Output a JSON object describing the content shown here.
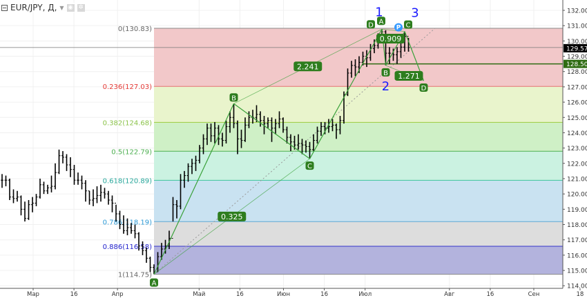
{
  "legend": {
    "symbol": "EUR/JPY, Д,",
    "dropdown_icon": "caret-down-icon",
    "eye_icon": "eye-icon",
    "settings_icon": "gear-icon"
  },
  "colors": {
    "bar": "#000000",
    "pattern": "#3aa13a",
    "pattern_label_bg": "#2e7d1e",
    "wave_label": "#1a1aff",
    "point_p": "#3399ff",
    "price_line": "#000000",
    "hline": "#2e6b12"
  },
  "chart_data": {
    "type": "ohlc-bar",
    "symbol": "EUR/JPY",
    "ylim": [
      114,
      132
    ],
    "y_ticks": [
      114,
      115,
      116,
      117,
      118,
      119,
      120,
      121,
      122,
      123,
      124,
      125,
      126,
      127,
      128,
      129,
      130,
      131,
      132
    ],
    "y_tick_labels": [
      "114.00",
      "115.00",
      "116.00",
      "117.00",
      "118.00",
      "119.00",
      "120.00",
      "121.00",
      "122.00",
      "123.00",
      "124.00",
      "125.00",
      "126.00",
      "127.00",
      "128.00",
      "129.00",
      "130.00",
      "131.00",
      "132.00"
    ],
    "x_ticks": [
      {
        "date": "2017-03-01",
        "label": "Мар"
      },
      {
        "date": "2017-03-16",
        "label": "16"
      },
      {
        "date": "2017-04-01",
        "label": "Апр"
      },
      {
        "date": "2017-05-01",
        "label": "Май"
      },
      {
        "date": "2017-05-16",
        "label": "16"
      },
      {
        "date": "2017-06-01",
        "label": "Июн"
      },
      {
        "date": "2017-06-16",
        "label": "16"
      },
      {
        "date": "2017-07-01",
        "label": "Июл"
      },
      {
        "date": "2017-08-01",
        "label": "Авг"
      },
      {
        "date": "2017-08-16",
        "label": "16"
      },
      {
        "date": "2017-09-01",
        "label": "Сен"
      },
      {
        "date": "2017-09-18",
        "label": "18"
      }
    ],
    "grid": true,
    "bar_fields": [
      "date",
      "high",
      "low",
      "close"
    ],
    "bars": [
      [
        "2017-02-17",
        121.3,
        120.4,
        120.9
      ],
      [
        "2017-02-20",
        121.2,
        120.5,
        120.9
      ],
      [
        "2017-02-21",
        121.0,
        119.6,
        119.8
      ],
      [
        "2017-02-22",
        120.3,
        119.4,
        119.7
      ],
      [
        "2017-02-23",
        120.2,
        119.5,
        119.8
      ],
      [
        "2017-02-24",
        119.9,
        118.6,
        119.0
      ],
      [
        "2017-02-27",
        119.5,
        118.2,
        118.4
      ],
      [
        "2017-02-28",
        119.6,
        118.3,
        119.3
      ],
      [
        "2017-03-01",
        119.8,
        118.8,
        119.4
      ],
      [
        "2017-03-02",
        120.0,
        119.2,
        119.8
      ],
      [
        "2017-03-03",
        121.0,
        119.7,
        120.6
      ],
      [
        "2017-03-06",
        120.8,
        120.0,
        120.2
      ],
      [
        "2017-03-07",
        120.6,
        120.0,
        120.4
      ],
      [
        "2017-03-08",
        121.2,
        120.1,
        120.5
      ],
      [
        "2017-03-09",
        122.0,
        120.3,
        121.4
      ],
      [
        "2017-03-10",
        122.9,
        121.3,
        122.5
      ],
      [
        "2017-03-13",
        122.8,
        122.0,
        122.4
      ],
      [
        "2017-03-14",
        122.6,
        121.5,
        121.9
      ],
      [
        "2017-03-15",
        122.4,
        121.1,
        121.6
      ],
      [
        "2017-03-16",
        121.9,
        120.6,
        120.9
      ],
      [
        "2017-03-17",
        121.4,
        120.6,
        120.9
      ],
      [
        "2017-03-20",
        121.2,
        120.3,
        120.7
      ],
      [
        "2017-03-21",
        120.9,
        119.5,
        120.2
      ],
      [
        "2017-03-22",
        120.2,
        119.3,
        119.6
      ],
      [
        "2017-03-23",
        120.3,
        119.2,
        119.7
      ],
      [
        "2017-03-24",
        120.5,
        119.4,
        119.9
      ],
      [
        "2017-03-27",
        120.6,
        119.5,
        120.1
      ],
      [
        "2017-03-28",
        120.4,
        119.7,
        120.0
      ],
      [
        "2017-03-29",
        120.2,
        119.3,
        119.6
      ],
      [
        "2017-03-30",
        119.9,
        118.8,
        119.4
      ],
      [
        "2017-03-31",
        119.3,
        118.2,
        118.7
      ],
      [
        "2017-04-03",
        118.9,
        117.7,
        118.0
      ],
      [
        "2017-04-04",
        118.6,
        117.4,
        117.6
      ],
      [
        "2017-04-05",
        118.4,
        117.3,
        117.8
      ],
      [
        "2017-04-06",
        118.1,
        117.4,
        117.6
      ],
      [
        "2017-04-07",
        118.0,
        117.1,
        117.4
      ],
      [
        "2017-04-10",
        117.5,
        116.3,
        116.6
      ],
      [
        "2017-04-11",
        116.9,
        116.0,
        116.3
      ],
      [
        "2017-04-12",
        116.5,
        115.5,
        115.8
      ],
      [
        "2017-04-13",
        115.9,
        114.9,
        115.2
      ],
      [
        "2017-04-14",
        115.4,
        114.75,
        114.9
      ],
      [
        "2017-04-17",
        116.2,
        114.9,
        115.9
      ],
      [
        "2017-04-18",
        116.8,
        115.7,
        116.4
      ],
      [
        "2017-04-19",
        117.0,
        116.1,
        116.6
      ],
      [
        "2017-04-20",
        117.6,
        116.4,
        117.1
      ],
      [
        "2017-04-21",
        119.8,
        118.2,
        119.3
      ],
      [
        "2017-04-24",
        119.6,
        118.4,
        119.2
      ],
      [
        "2017-04-25",
        121.3,
        119.0,
        120.9
      ],
      [
        "2017-04-26",
        121.5,
        120.4,
        121.2
      ],
      [
        "2017-04-27",
        122.0,
        120.8,
        121.8
      ],
      [
        "2017-04-28",
        122.3,
        121.3,
        122.0
      ],
      [
        "2017-05-01",
        122.5,
        121.5,
        122.2
      ],
      [
        "2017-05-02",
        123.2,
        122.0,
        123.0
      ],
      [
        "2017-05-03",
        123.9,
        122.6,
        123.6
      ],
      [
        "2017-05-04",
        124.6,
        123.2,
        124.3
      ],
      [
        "2017-05-05",
        124.6,
        123.4,
        123.8
      ],
      [
        "2017-05-08",
        124.7,
        123.3,
        124.3
      ],
      [
        "2017-05-09",
        124.5,
        123.2,
        123.6
      ],
      [
        "2017-05-10",
        124.0,
        123.1,
        123.5
      ],
      [
        "2017-05-11",
        124.8,
        123.3,
        124.4
      ],
      [
        "2017-05-12",
        125.4,
        124.0,
        125.0
      ],
      [
        "2017-05-15",
        125.9,
        124.3,
        124.6
      ],
      [
        "2017-05-16",
        124.8,
        122.6,
        123.6
      ],
      [
        "2017-05-17",
        124.2,
        123.0,
        123.5
      ],
      [
        "2017-05-18",
        125.0,
        123.4,
        124.5
      ],
      [
        "2017-05-19",
        125.4,
        124.3,
        125.0
      ],
      [
        "2017-05-22",
        125.5,
        124.6,
        125.0
      ],
      [
        "2017-05-23",
        125.8,
        124.7,
        125.2
      ],
      [
        "2017-05-24",
        125.4,
        124.4,
        124.8
      ],
      [
        "2017-05-25",
        125.1,
        123.9,
        124.6
      ],
      [
        "2017-05-26",
        125.0,
        124.3,
        124.8
      ],
      [
        "2017-05-29",
        125.0,
        123.4,
        124.3
      ],
      [
        "2017-05-30",
        124.9,
        123.9,
        124.6
      ],
      [
        "2017-05-31",
        125.4,
        124.3,
        124.9
      ],
      [
        "2017-06-01",
        125.0,
        124.0,
        124.2
      ],
      [
        "2017-06-02",
        124.4,
        123.3,
        123.7
      ],
      [
        "2017-06-05",
        123.9,
        122.8,
        123.4
      ],
      [
        "2017-06-06",
        123.8,
        122.9,
        123.2
      ],
      [
        "2017-06-07",
        123.9,
        122.9,
        123.3
      ],
      [
        "2017-06-08",
        123.6,
        122.6,
        123.2
      ],
      [
        "2017-06-09",
        123.5,
        122.7,
        123.1
      ],
      [
        "2017-06-12",
        123.4,
        122.3,
        122.9
      ],
      [
        "2017-06-13",
        123.9,
        122.8,
        123.5
      ],
      [
        "2017-06-14",
        124.4,
        123.3,
        124.1
      ],
      [
        "2017-06-15",
        124.7,
        123.8,
        124.4
      ],
      [
        "2017-06-16",
        124.7,
        123.9,
        124.3
      ],
      [
        "2017-06-19",
        124.9,
        124.0,
        124.4
      ],
      [
        "2017-06-20",
        124.9,
        124.1,
        124.5
      ],
      [
        "2017-06-21",
        124.6,
        123.6,
        124.2
      ],
      [
        "2017-06-22",
        125.1,
        123.9,
        124.8
      ],
      [
        "2017-06-23",
        126.7,
        124.6,
        126.5
      ],
      [
        "2017-06-26",
        128.2,
        126.4,
        127.9
      ],
      [
        "2017-06-27",
        128.7,
        127.6,
        128.4
      ],
      [
        "2017-06-28",
        128.8,
        127.7,
        128.3
      ],
      [
        "2017-06-29",
        129.0,
        127.9,
        128.6
      ],
      [
        "2017-06-30",
        129.3,
        128.4,
        129.0
      ],
      [
        "2017-07-03",
        129.4,
        128.3,
        128.9
      ],
      [
        "2017-07-04",
        129.8,
        128.7,
        129.5
      ],
      [
        "2017-07-05",
        130.1,
        129.2,
        129.7
      ],
      [
        "2017-07-06",
        130.5,
        129.5,
        130.2
      ],
      [
        "2017-07-07",
        130.77,
        130.0,
        130.6
      ],
      [
        "2017-07-10",
        130.7,
        128.4,
        129.2
      ],
      [
        "2017-07-11",
        129.6,
        128.5,
        129.2
      ],
      [
        "2017-07-12",
        129.5,
        128.7,
        129.1
      ],
      [
        "2017-07-13",
        129.6,
        128.5,
        129.3
      ],
      [
        "2017-07-14",
        130.0,
        128.9,
        129.6
      ],
      [
        "2017-07-17",
        130.62,
        129.3,
        130.3
      ],
      [
        "2017-07-18",
        130.2,
        129.3,
        129.57
      ]
    ],
    "last_price": {
      "value": 129.57,
      "label": "129.57"
    },
    "horizontal_line": {
      "value": 128.5,
      "label": "128.50",
      "from_date": "2017-06-30"
    },
    "fibonacci": {
      "start": {
        "date": "2017-04-14",
        "price": 114.75
      },
      "end": {
        "date": "2017-07-27",
        "price": 130.83
      },
      "levels": [
        {
          "ratio": 0,
          "price": 130.83,
          "label": "0(130.83)",
          "line": "#888888",
          "fill": "#f2c8c9",
          "text": "#666666"
        },
        {
          "ratio": 0.236,
          "price": 127.03,
          "label": "0.236(127.03)",
          "line": "#e57373",
          "fill": "#e9f4cc",
          "text": "#e53935"
        },
        {
          "ratio": 0.382,
          "price": 124.68,
          "label": "0.382(124.68)",
          "line": "#9ccc3c",
          "fill": "#cff0c6",
          "text": "#8bc34a"
        },
        {
          "ratio": 0.5,
          "price": 122.79,
          "label": "0.5(122.79)",
          "line": "#4caf50",
          "fill": "#cbf2e1",
          "text": "#4caf50"
        },
        {
          "ratio": 0.618,
          "price": 120.89,
          "label": "0.618(120.89)",
          "line": "#3cc49b",
          "fill": "#c9e2f1",
          "text": "#26a69a"
        },
        {
          "ratio": 0.786,
          "price": 118.19,
          "label": "0.786(118.19)",
          "line": "#5fa8d3",
          "fill": "#dddddd",
          "text": "#2f9bd6"
        },
        {
          "ratio": 0.886,
          "price": 116.58,
          "label": "0.886(116.58)",
          "line": "#3333cc",
          "fill": "#b3b3dd",
          "text": "#2222cc"
        },
        {
          "ratio": 1,
          "price": 114.75,
          "label": "1(114.75)",
          "line": "#888888",
          "fill": null,
          "text": "#666666"
        }
      ]
    },
    "patterns": [
      {
        "points": [
          {
            "name": "A",
            "date": "2017-04-14",
            "price": 114.75,
            "pos": "below"
          },
          {
            "name": "B",
            "date": "2017-05-15",
            "price": 125.9,
            "pos": "above"
          },
          {
            "name": "C",
            "date": "2017-06-12",
            "price": 122.3,
            "pos": "below"
          },
          {
            "name": "D",
            "date": "2017-07-07",
            "price": 130.77,
            "pos": "above"
          }
        ],
        "ratios": [
          {
            "from": 0,
            "to": 2,
            "label": "0.325"
          },
          {
            "from": 1,
            "to": 3,
            "label": "2.241"
          }
        ]
      },
      {
        "points": [
          {
            "name": "A",
            "date": "2017-07-07",
            "price": 130.77,
            "pos": "above"
          },
          {
            "name": "B",
            "date": "2017-07-10",
            "price": 128.4,
            "pos": "below"
          },
          {
            "name": "C",
            "date": "2017-07-17",
            "price": 130.62,
            "pos": "above"
          },
          {
            "name": "D",
            "date": "2017-07-24",
            "price": 127.4,
            "pos": "below"
          }
        ],
        "ratios": [
          {
            "from": 0,
            "to": 2,
            "label": "0.909"
          },
          {
            "from": 1,
            "to": 3,
            "label": "1.271"
          }
        ]
      }
    ],
    "point_marker": {
      "date": "2017-07-17",
      "price": 130.62,
      "label": "P"
    },
    "waves": [
      {
        "label": "1",
        "date": "2017-07-07",
        "price": 130.77,
        "pos": "above"
      },
      {
        "label": "2",
        "date": "2017-07-10",
        "price": 128.4,
        "pos": "below"
      },
      {
        "label": "3",
        "date": "2017-07-17",
        "price": 130.62,
        "pos": "above"
      }
    ]
  }
}
